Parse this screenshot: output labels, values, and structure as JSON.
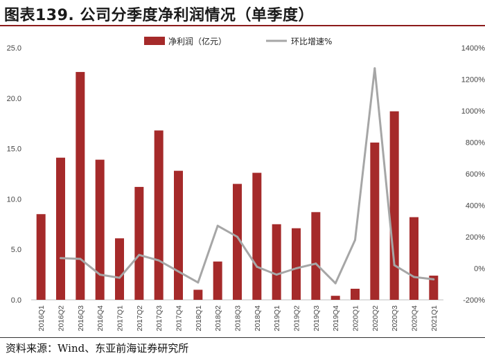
{
  "title": "图表139. 公司分季度净利润情况（单季度）",
  "source": "资料来源：Wind、东亚前海证券研究所",
  "colors": {
    "bar": "#a52a2a",
    "line": "#a6a6a6",
    "title_rule": "#8c1a1a"
  },
  "chart_data": {
    "type": "bar",
    "categories": [
      "2016Q1",
      "2016Q2",
      "2016Q3",
      "2016Q4",
      "2017Q1",
      "2017Q2",
      "2017Q3",
      "2017Q4",
      "2018Q1",
      "2018Q2",
      "2018Q3",
      "2018Q4",
      "2019Q1",
      "2019Q2",
      "2019Q3",
      "2019Q4",
      "2020Q1",
      "2020Q2",
      "2020Q3",
      "2020Q4",
      "2021Q1"
    ],
    "series": [
      {
        "name": "净利润（亿元）",
        "type": "bar",
        "axis": "left",
        "values": [
          8.5,
          14.1,
          22.6,
          13.9,
          6.1,
          11.2,
          16.8,
          12.8,
          1.0,
          3.8,
          11.5,
          12.6,
          7.5,
          7.1,
          8.7,
          0.4,
          1.1,
          15.6,
          18.7,
          8.2,
          2.4
        ]
      },
      {
        "name": "环比增速%",
        "type": "line",
        "axis": "right",
        "values": [
          null,
          65,
          60,
          -40,
          -60,
          85,
          50,
          -20,
          -90,
          270,
          200,
          10,
          -40,
          0,
          30,
          -95,
          180,
          1270,
          20,
          -55,
          -70
        ]
      }
    ],
    "left_axis": {
      "min": 0,
      "max": 25,
      "ticks": [
        "0.0",
        "5.0",
        "10.0",
        "15.0",
        "20.0",
        "25.0"
      ]
    },
    "right_axis": {
      "min": -200,
      "max": 1400,
      "ticks": [
        "-200%",
        "0%",
        "200%",
        "400%",
        "600%",
        "800%",
        "1000%",
        "1200%",
        "1400%"
      ]
    },
    "legend_position": "top-center",
    "grid": false
  }
}
